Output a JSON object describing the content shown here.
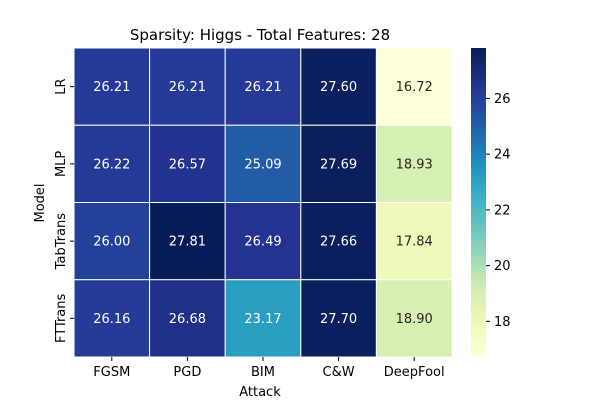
{
  "chart_data": {
    "type": "heatmap",
    "title": "Sparsity: Higgs - Total Features: 28",
    "xlabel": "Attack",
    "ylabel": "Model",
    "x_categories": [
      "FGSM",
      "PGD",
      "BIM",
      "C&W",
      "DeepFool"
    ],
    "y_categories": [
      "LR",
      "MLP",
      "TabTrans",
      "FTTrans"
    ],
    "values": [
      [
        26.21,
        26.21,
        26.21,
        27.6,
        16.72
      ],
      [
        26.22,
        26.57,
        25.09,
        27.69,
        18.93
      ],
      [
        26.0,
        27.81,
        26.49,
        27.66,
        17.84
      ],
      [
        26.16,
        26.68,
        23.17,
        27.7,
        18.9
      ]
    ],
    "colorbar": {
      "colormap": "YlGnBu",
      "vmin": 16.72,
      "vmax": 27.81,
      "ticks": [
        18,
        20,
        22,
        24,
        26
      ]
    },
    "annotation_decimals": 2,
    "grid": false
  }
}
